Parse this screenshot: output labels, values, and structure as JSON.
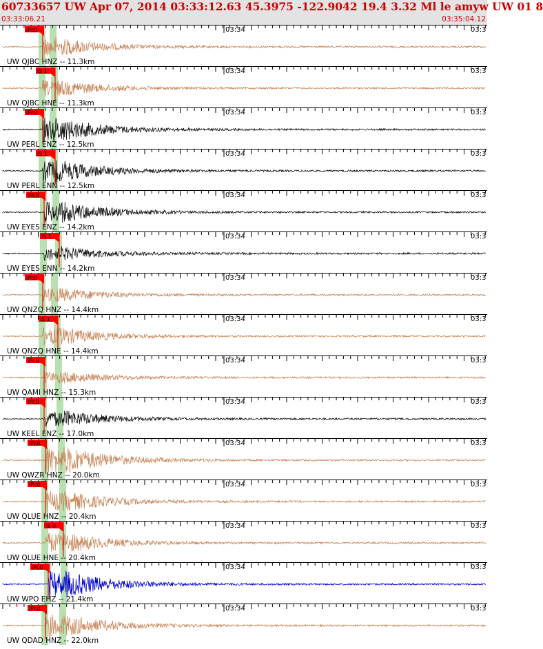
{
  "header": {
    "title": "60733657 UW Apr 07, 2014 03:33:12.63   45.3975 -122.9042 19.4 3.32 Ml le amyw UW 01   8",
    "start_time": "03:33:06.21",
    "end_time": "03:35:04.12"
  },
  "minute_label": "03:34",
  "edge_label": "03:3",
  "colors": {
    "header_bg": "#e3e3e3",
    "header_text": "#cc0000",
    "pick_flag": "#ff0000",
    "window_band": "#b8e0b0",
    "tan_trace": "#c8865a",
    "black_trace": "#111111",
    "blue_trace": "#0000cc"
  },
  "traces": [
    {
      "label": "UW QJBC HNZ -- 11.3km",
      "color": "tan",
      "picks": [
        "iPc0"
      ],
      "amp": 0.45
    },
    {
      "label": "UW QJBC HNE -- 11.3km",
      "color": "tan",
      "picks": [
        "iS 1"
      ],
      "amp": 0.4
    },
    {
      "label": "UW PERL ENZ -- 12.5km",
      "color": "black",
      "picks": [
        "iPc0"
      ],
      "amp": 0.6
    },
    {
      "label": "UW PERL ENN -- 12.5km",
      "color": "black",
      "picks": [
        "iS 1"
      ],
      "amp": 0.55
    },
    {
      "label": "UW EYES ENZ -- 14.2km",
      "color": "black",
      "picks": [
        "iPc0"
      ],
      "amp": 0.55
    },
    {
      "label": "UW EYES ENN -- 14.2km",
      "color": "black",
      "picks": [
        "iS 1"
      ],
      "amp": 0.35
    },
    {
      "label": "UW QNZQ HNZ -- 14.4km",
      "color": "tan",
      "picks": [
        "iPc0"
      ],
      "amp": 0.35
    },
    {
      "label": "UW QNZQ HNE -- 14.4km",
      "color": "tan",
      "picks": [
        "iS 1"
      ],
      "amp": 0.45
    },
    {
      "label": "UW QAMI HNZ -- 15.3km",
      "color": "tan",
      "picks": [
        "iPc0"
      ],
      "amp": 0.3
    },
    {
      "label": "UW KEEL ENZ -- 17.0km",
      "color": "black",
      "picks": [
        "iPc0"
      ],
      "amp": 0.45
    },
    {
      "label": "UW QWZR HNZ -- 20.0km",
      "color": "tan",
      "picks": [
        "iPc0"
      ],
      "amp": 0.75
    },
    {
      "label": "UW QLUE HNZ -- 20.4km",
      "color": "tan",
      "picks": [
        "iPc0"
      ],
      "amp": 0.55
    },
    {
      "label": "UW QLUE HNE -- 20.4km",
      "color": "tan",
      "picks": [
        "iS 0"
      ],
      "amp": 0.55
    },
    {
      "label": "UW WPO EHZ -- 21.4km",
      "color": "blue",
      "picks": [
        "iPc0"
      ],
      "amp": 0.7
    },
    {
      "label": "UW QDAD HNZ -- 22.0km",
      "color": "tan",
      "picks": [
        "iPc0"
      ],
      "amp": 0.6
    }
  ]
}
